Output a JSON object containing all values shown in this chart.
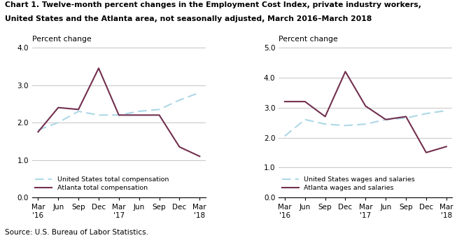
{
  "title_line1": "Chart 1. Twelve-month percent changes in the Employment Cost Index, private industry workers,",
  "title_line2": "United States and the Atlanta area, not seasonally adjusted, March 2016–March 2018",
  "source": "Source: U.S. Bureau of Labor Statistics.",
  "x_labels": [
    "Mar\n'16",
    "Jun",
    "Sep",
    "Dec",
    "Mar\n'17",
    "Jun",
    "Sep",
    "Dec",
    "Mar\n'18"
  ],
  "left_chart": {
    "ylabel": "Percent change",
    "ylim": [
      0.0,
      4.0
    ],
    "yticks": [
      0.0,
      1.0,
      2.0,
      3.0,
      4.0
    ],
    "us_total_comp": [
      1.8,
      2.0,
      2.3,
      2.2,
      2.2,
      2.3,
      2.35,
      2.6,
      2.8
    ],
    "atlanta_total_comp": [
      1.75,
      2.4,
      2.35,
      3.45,
      2.2,
      2.2,
      2.2,
      1.35,
      1.1
    ],
    "legend1": "United States total compensation",
    "legend2": "Atlanta total compensation"
  },
  "right_chart": {
    "ylabel": "Percent change",
    "ylim": [
      0.0,
      5.0
    ],
    "yticks": [
      0.0,
      1.0,
      2.0,
      3.0,
      4.0,
      5.0
    ],
    "us_wages_salaries": [
      2.05,
      2.6,
      2.45,
      2.4,
      2.45,
      2.6,
      2.65,
      2.8,
      2.9
    ],
    "atlanta_wages_salaries": [
      3.2,
      3.2,
      2.7,
      4.2,
      3.05,
      2.6,
      2.7,
      1.5,
      1.7
    ],
    "legend1": "United States wages and salaries",
    "legend2": "Atlanta wages and salaries"
  },
  "us_line_color": "#add8e6",
  "atlanta_line_color": "#722f4f",
  "grid_color": "#bbbbbb",
  "title_color": "#000000",
  "background_color": "#ffffff"
}
